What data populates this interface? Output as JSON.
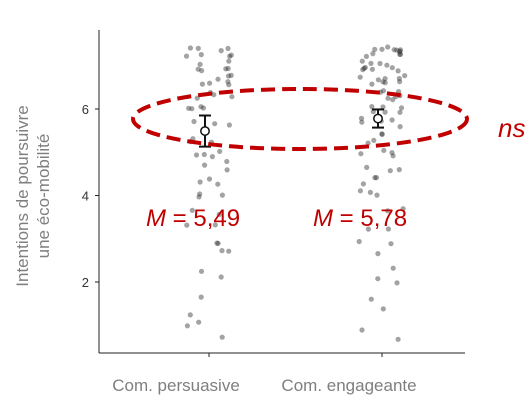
{
  "colors": {
    "axis": "#222222",
    "point": "#333333",
    "annotation": "#c00000",
    "label": "#7f7f7f"
  },
  "chart_data": {
    "type": "scatter",
    "title": "",
    "ylabel_lines": [
      "Intentions de poursuivre",
      "une éco-mobilité"
    ],
    "xlabel": "",
    "categories": [
      "Com. persuasive",
      "Com. engageante"
    ],
    "yticks": [
      2,
      4,
      6
    ],
    "ylim": [
      0.5,
      7.6
    ],
    "grid": false,
    "means": [
      5.49,
      5.78
    ],
    "errors": [
      [
        5.13,
        5.85
      ],
      [
        5.57,
        5.99
      ]
    ],
    "mean_labels": [
      {
        "prefix": "M",
        "text": " = 5,49"
      },
      {
        "prefix": "M",
        "text": " = 5,78"
      }
    ],
    "significance": "ns",
    "series": [
      {
        "category": "Com. persuasive",
        "values": [
          7.33,
          7.33,
          7.33,
          7.33,
          7.33,
          7.33,
          7.33,
          7.33,
          7.0,
          7.0,
          7.0,
          7.0,
          7.0,
          7.0,
          6.67,
          6.67,
          6.67,
          6.67,
          6.67,
          6.67,
          6.67,
          6.33,
          6.33,
          6.33,
          6.33,
          6.0,
          6.0,
          6.0,
          6.0,
          5.67,
          5.67,
          5.67,
          5.33,
          5.33,
          5.33,
          5.0,
          5.0,
          5.0,
          5.0,
          4.67,
          4.67,
          4.67,
          4.33,
          4.33,
          4.33,
          4.0,
          4.0,
          4.0,
          3.67,
          3.67,
          3.33,
          3.33,
          3.0,
          3.0,
          2.67,
          2.67,
          2.33,
          2.0,
          1.67,
          1.33,
          1.0,
          1.0,
          0.67
        ]
      },
      {
        "category": "Com. engageante",
        "values": [
          7.33,
          7.33,
          7.33,
          7.33,
          7.33,
          7.33,
          7.33,
          7.33,
          7.33,
          7.33,
          7.33,
          7.33,
          7.0,
          7.0,
          7.0,
          7.0,
          7.0,
          7.0,
          7.0,
          7.0,
          7.0,
          7.0,
          6.67,
          6.67,
          6.67,
          6.67,
          6.67,
          6.67,
          6.67,
          6.67,
          6.67,
          6.33,
          6.33,
          6.33,
          6.33,
          6.33,
          6.33,
          6.33,
          6.0,
          6.0,
          6.0,
          6.0,
          6.0,
          6.0,
          5.67,
          5.67,
          5.67,
          5.67,
          5.67,
          5.33,
          5.33,
          5.33,
          5.33,
          5.0,
          5.0,
          5.0,
          5.0,
          4.67,
          4.67,
          4.67,
          4.33,
          4.33,
          4.33,
          4.0,
          4.0,
          4.0,
          3.67,
          3.67,
          3.33,
          3.33,
          3.0,
          3.0,
          2.67,
          2.33,
          2.0,
          2.0,
          1.67,
          1.33,
          1.0,
          0.67
        ]
      }
    ]
  }
}
